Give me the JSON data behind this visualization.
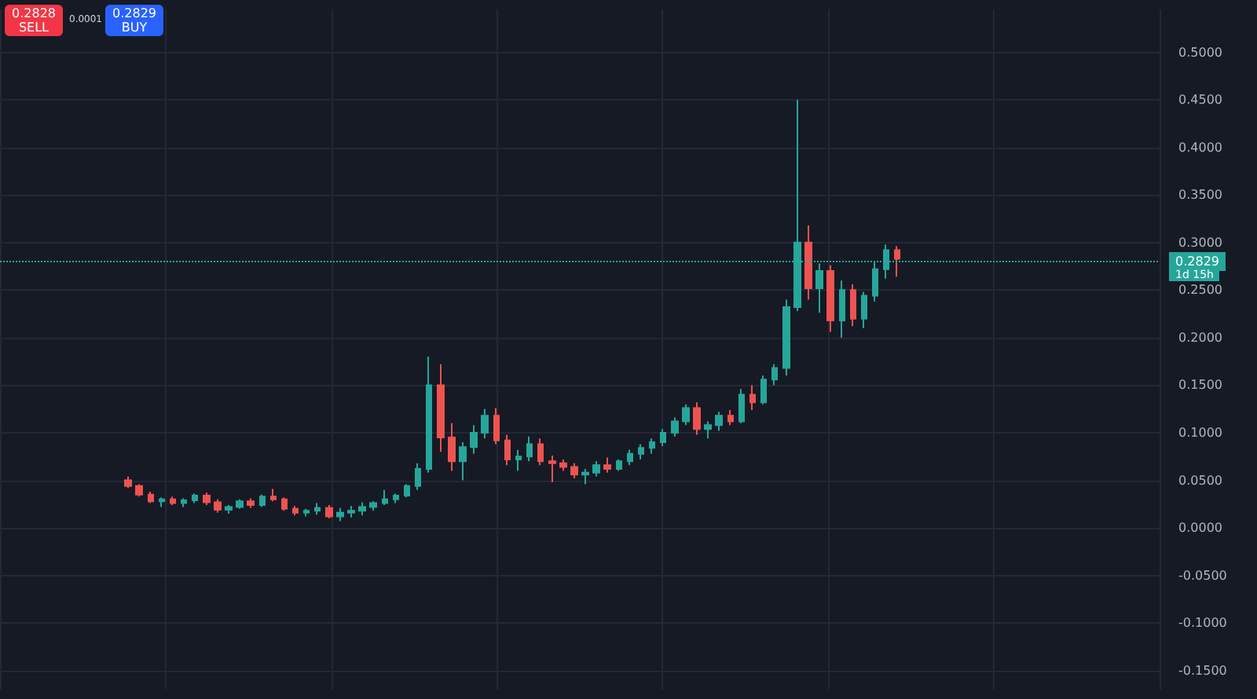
{
  "chart_data": {
    "type": "candlestick",
    "categories": [
      null,
      null,
      null,
      null,
      null,
      null,
      null,
      null,
      null,
      null,
      null,
      null,
      null,
      null,
      null,
      null,
      null,
      null,
      null,
      null,
      null,
      null,
      null,
      null,
      null,
      null,
      null,
      null,
      null,
      null,
      null,
      null,
      null,
      null,
      null,
      null,
      null,
      null,
      null,
      null,
      null,
      null,
      null,
      null,
      null,
      null,
      null,
      null,
      null,
      null,
      null,
      null,
      null,
      null,
      null,
      null,
      null,
      null,
      null,
      null,
      null,
      null,
      null,
      null,
      null,
      null,
      null,
      null,
      null,
      null,
      null,
      null,
      null,
      null,
      null,
      null,
      null,
      null,
      null,
      null,
      null,
      null,
      null,
      null,
      null,
      null,
      null,
      null,
      null,
      null,
      null,
      null,
      null,
      null,
      null,
      null,
      null,
      null,
      null,
      null,
      null,
      null,
      null,
      null
    ],
    "ohlc": [
      null,
      null,
      null,
      null,
      null,
      null,
      null,
      null,
      null,
      null,
      null,
      [
        0.05,
        0.054,
        0.042,
        0.044
      ],
      [
        0.044,
        0.046,
        0.033,
        0.035
      ],
      [
        0.035,
        0.038,
        0.026,
        0.028
      ],
      [
        0.028,
        0.032,
        0.022,
        0.03
      ],
      [
        0.03,
        0.033,
        0.024,
        0.026
      ],
      [
        0.026,
        0.031,
        0.022,
        0.029
      ],
      [
        0.029,
        0.036,
        0.026,
        0.034
      ],
      [
        0.034,
        0.037,
        0.024,
        0.027
      ],
      [
        0.027,
        0.03,
        0.016,
        0.019
      ],
      [
        0.019,
        0.024,
        0.015,
        0.022
      ],
      [
        0.022,
        0.03,
        0.02,
        0.028
      ],
      [
        0.028,
        0.031,
        0.021,
        0.024
      ],
      [
        0.024,
        0.035,
        0.022,
        0.033
      ],
      [
        0.033,
        0.041,
        0.028,
        0.03
      ],
      [
        0.03,
        0.032,
        0.018,
        0.02
      ],
      [
        0.02,
        0.023,
        0.013,
        0.016
      ],
      [
        0.016,
        0.02,
        0.012,
        0.018
      ],
      [
        0.018,
        0.026,
        0.014,
        0.021
      ],
      [
        0.021,
        0.024,
        0.01,
        0.012
      ],
      [
        0.012,
        0.021,
        0.007,
        0.016
      ],
      [
        0.016,
        0.023,
        0.011,
        0.018
      ],
      [
        0.018,
        0.027,
        0.013,
        0.022
      ],
      [
        0.022,
        0.028,
        0.018,
        0.026
      ],
      [
        0.026,
        0.04,
        0.024,
        0.03
      ],
      [
        0.03,
        0.036,
        0.026,
        0.034
      ],
      [
        0.034,
        0.046,
        0.032,
        0.044
      ],
      [
        0.044,
        0.068,
        0.04,
        0.062
      ],
      [
        0.062,
        0.18,
        0.058,
        0.15
      ],
      [
        0.15,
        0.172,
        0.08,
        0.095
      ],
      [
        0.095,
        0.11,
        0.06,
        0.07
      ],
      [
        0.07,
        0.09,
        0.05,
        0.085
      ],
      [
        0.085,
        0.108,
        0.078,
        0.1
      ],
      [
        0.1,
        0.125,
        0.094,
        0.118
      ],
      [
        0.118,
        0.126,
        0.088,
        0.092
      ],
      [
        0.092,
        0.098,
        0.066,
        0.072
      ],
      [
        0.072,
        0.082,
        0.06,
        0.075
      ],
      [
        0.075,
        0.096,
        0.07,
        0.088
      ],
      [
        0.088,
        0.094,
        0.066,
        0.07
      ],
      [
        0.07,
        0.076,
        0.048,
        0.068
      ],
      [
        0.068,
        0.072,
        0.06,
        0.064
      ],
      [
        0.064,
        0.068,
        0.052,
        0.056
      ],
      [
        0.056,
        0.062,
        0.046,
        0.058
      ],
      [
        0.058,
        0.07,
        0.054,
        0.066
      ],
      [
        0.066,
        0.074,
        0.058,
        0.062
      ],
      [
        0.062,
        0.072,
        0.06,
        0.07
      ],
      [
        0.07,
        0.082,
        0.066,
        0.078
      ],
      [
        0.078,
        0.088,
        0.072,
        0.084
      ],
      [
        0.084,
        0.094,
        0.078,
        0.09
      ],
      [
        0.09,
        0.104,
        0.086,
        0.1
      ],
      [
        0.1,
        0.116,
        0.096,
        0.112
      ],
      [
        0.112,
        0.13,
        0.108,
        0.126
      ],
      [
        0.126,
        0.132,
        0.098,
        0.104
      ],
      [
        0.104,
        0.112,
        0.094,
        0.108
      ],
      [
        0.108,
        0.122,
        0.102,
        0.118
      ],
      [
        0.118,
        0.124,
        0.108,
        0.112
      ],
      [
        0.112,
        0.146,
        0.11,
        0.14
      ],
      [
        0.14,
        0.15,
        0.124,
        0.132
      ],
      [
        0.132,
        0.16,
        0.13,
        0.156
      ],
      [
        0.156,
        0.172,
        0.15,
        0.168
      ],
      [
        0.168,
        0.24,
        0.16,
        0.232
      ],
      [
        0.232,
        0.45,
        0.228,
        0.3
      ],
      [
        0.3,
        0.318,
        0.24,
        0.252
      ],
      [
        0.252,
        0.278,
        0.226,
        0.27
      ],
      [
        0.27,
        0.276,
        0.206,
        0.218
      ],
      [
        0.218,
        0.26,
        0.2,
        0.25
      ],
      [
        0.25,
        0.256,
        0.212,
        0.22
      ],
      [
        0.22,
        0.248,
        0.21,
        0.244
      ],
      [
        0.244,
        0.28,
        0.238,
        0.272
      ],
      [
        0.272,
        0.298,
        0.262,
        0.292
      ],
      [
        0.292,
        0.296,
        0.264,
        0.2829
      ],
      null,
      null,
      null,
      null,
      null,
      null,
      null,
      null,
      null,
      null,
      null,
      null,
      null,
      null,
      null,
      null,
      null,
      null,
      null,
      null,
      null,
      null,
      null
    ],
    "colors": [
      null,
      null,
      null,
      null,
      null,
      null,
      null,
      null,
      null,
      null,
      null,
      "#ef5350",
      "#ef5350",
      "#ef5350",
      "#26a69a",
      "#ef5350",
      "#26a69a",
      "#26a69a",
      "#ef5350",
      "#ef5350",
      "#26a69a",
      "#26a69a",
      "#ef5350",
      "#26a69a",
      "#ef5350",
      "#ef5350",
      "#ef5350",
      "#26a69a",
      "#26a69a",
      "#ef5350",
      "#26a69a",
      "#26a69a",
      "#26a69a",
      "#26a69a",
      "#26a69a",
      "#26a69a",
      "#26a69a",
      "#26a69a",
      "#26a69a",
      "#ef5350",
      "#ef5350",
      "#26a69a",
      "#26a69a",
      "#26a69a",
      "#ef5350",
      "#ef5350",
      "#26a69a",
      "#26a69a",
      "#ef5350",
      "#ef5350",
      "#ef5350",
      "#ef5350",
      "#26a69a",
      "#26a69a",
      "#ef5350",
      "#26a69a",
      "#26a69a",
      "#26a69a",
      "#26a69a",
      "#26a69a",
      "#26a69a",
      "#26a69a",
      "#ef5350",
      "#26a69a",
      "#26a69a",
      "#ef5350",
      "#26a69a",
      "#ef5350",
      "#26a69a",
      "#26a69a",
      "#26a69a",
      "#26a69a",
      "#ef5350",
      "#26a69a",
      "#ef5350",
      "#26a69a",
      "#ef5350",
      "#26a69a",
      "#26a69a",
      "#26a69a",
      "#ef5350",
      null,
      null,
      null,
      null,
      null,
      null,
      null,
      null,
      null,
      null,
      null,
      null,
      null,
      null,
      null,
      null,
      null,
      null,
      null,
      null,
      null,
      null,
      null
    ],
    "ylim": [
      -0.17,
      0.545
    ],
    "yticks": [
      {
        "value": -0.15,
        "label": "-0.1500"
      },
      {
        "value": -0.1,
        "label": "-0.1000"
      },
      {
        "value": -0.05,
        "label": "-0.0500"
      },
      {
        "value": 0,
        "label": "0.0000"
      },
      {
        "value": 0.05,
        "label": "0.0500"
      },
      {
        "value": 0.1,
        "label": "0.1000"
      },
      {
        "value": 0.15,
        "label": "0.1500"
      },
      {
        "value": 0.2,
        "label": "0.2000"
      },
      {
        "value": 0.25,
        "label": "0.2500"
      },
      {
        "value": 0.3,
        "label": "0.3000"
      },
      {
        "value": 0.35,
        "label": "0.3500"
      },
      {
        "value": 0.4,
        "label": "0.4000"
      },
      {
        "value": 0.45,
        "label": "0.4500"
      },
      {
        "value": 0.5,
        "label": "0.5000"
      }
    ],
    "grid": true,
    "tick_labels": "y",
    "ref_lines": [
      {
        "axis": "y",
        "value": 0.2829,
        "label": "0.2829",
        "color": "#26a69a",
        "line_style": "dotted"
      }
    ],
    "annotations": [
      "1d 15h",
      "0.2828",
      "SELL",
      "0.0001",
      "0.2829",
      "BUY"
    ]
  }
}
